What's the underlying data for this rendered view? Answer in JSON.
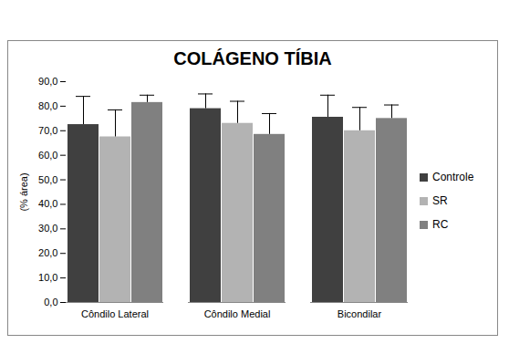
{
  "chart_data": {
    "type": "bar",
    "title": "COLÁGENO TÍBIA",
    "y_label": "(% área)",
    "categories": [
      "Côndilo Lateral",
      "Côndilo Medial",
      "Bicondilar"
    ],
    "series": [
      {
        "name": "Controle",
        "color": "#404040",
        "values": [
          72.5,
          79.0,
          75.5
        ],
        "errors": [
          11.5,
          6.0,
          9.0
        ]
      },
      {
        "name": "SR",
        "color": "#b3b3b3",
        "values": [
          67.5,
          73.0,
          70.0
        ],
        "errors": [
          11.0,
          9.0,
          9.5
        ]
      },
      {
        "name": "RC",
        "color": "#808080",
        "values": [
          81.5,
          68.5,
          75.0
        ],
        "errors": [
          3.0,
          8.5,
          5.5
        ]
      }
    ],
    "ylim": [
      0,
      90
    ],
    "yticks": [
      {
        "value": 0,
        "label": "0,0"
      },
      {
        "value": 10,
        "label": "10,0"
      },
      {
        "value": 20,
        "label": "20,0"
      },
      {
        "value": 30,
        "label": "30,0"
      },
      {
        "value": 40,
        "label": "40,0"
      },
      {
        "value": 50,
        "label": "50,0"
      },
      {
        "value": 60,
        "label": "60,0"
      },
      {
        "value": 70,
        "label": "70,0"
      },
      {
        "value": 80,
        "label": "80,0"
      },
      {
        "value": 90,
        "label": "90,0"
      }
    ],
    "grid": false,
    "legend": "right"
  }
}
